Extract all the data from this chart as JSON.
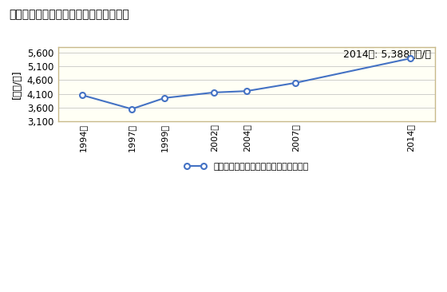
{
  "title": "商業の従業者一人当たり年間商品販売額",
  "ylabel": "[万円/人]",
  "annotation": "2014年: 5,388万円/人",
  "years": [
    1994,
    1997,
    1999,
    2002,
    2004,
    2007,
    2014
  ],
  "values": [
    4050,
    3550,
    3950,
    4150,
    4200,
    4500,
    5388
  ],
  "ylim": [
    3100,
    5800
  ],
  "yticks": [
    3100,
    3600,
    4100,
    4600,
    5100,
    5600
  ],
  "line_color": "#4472C4",
  "marker": "o",
  "marker_face": "white",
  "legend_label": "商業の従業者一人当たり年間商品販売額",
  "plot_bg": "#FFFFF5",
  "fig_bg": "#FFFFFF",
  "spine_color": "#C8B98A"
}
